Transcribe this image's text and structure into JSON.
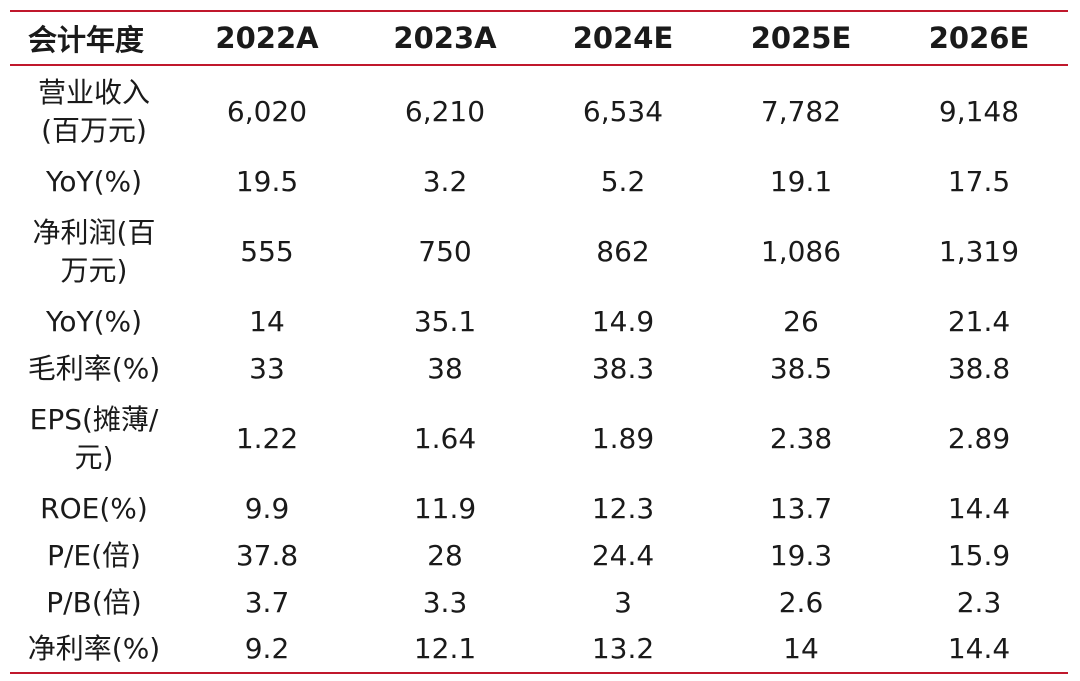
{
  "table": {
    "header": [
      "会计年度",
      "2022A",
      "2023A",
      "2024E",
      "2025E",
      "2026E"
    ],
    "rows": [
      {
        "label": "营业收入(百万元)",
        "values": [
          "6,020",
          "6,210",
          "6,534",
          "7,782",
          "9,148"
        ]
      },
      {
        "label": "YoY(%)",
        "values": [
          "19.5",
          "3.2",
          "5.2",
          "19.1",
          "17.5"
        ]
      },
      {
        "label": "净利润(百万元)",
        "values": [
          "555",
          "750",
          "862",
          "1,086",
          "1,319"
        ]
      },
      {
        "label": "YoY(%)",
        "values": [
          "14",
          "35.1",
          "14.9",
          "26",
          "21.4"
        ]
      },
      {
        "label": "毛利率(%)",
        "values": [
          "33",
          "38",
          "38.3",
          "38.5",
          "38.8"
        ]
      },
      {
        "label": "EPS(摊薄/元)",
        "values": [
          "1.22",
          "1.64",
          "1.89",
          "2.38",
          "2.89"
        ]
      },
      {
        "label": "ROE(%)",
        "values": [
          "9.9",
          "11.9",
          "12.3",
          "13.7",
          "14.4"
        ]
      },
      {
        "label": "P/E(倍)",
        "values": [
          "37.8",
          "28",
          "24.4",
          "19.3",
          "15.9"
        ]
      },
      {
        "label": "P/B(倍)",
        "values": [
          "3.7",
          "3.3",
          "3",
          "2.6",
          "2.3"
        ]
      },
      {
        "label": "净利率(%)",
        "values": [
          "9.2",
          "12.1",
          "13.2",
          "14",
          "14.4"
        ]
      }
    ]
  },
  "colors": {
    "rule": "#c0182c",
    "text": "#1a1a1a",
    "background": "#ffffff"
  }
}
